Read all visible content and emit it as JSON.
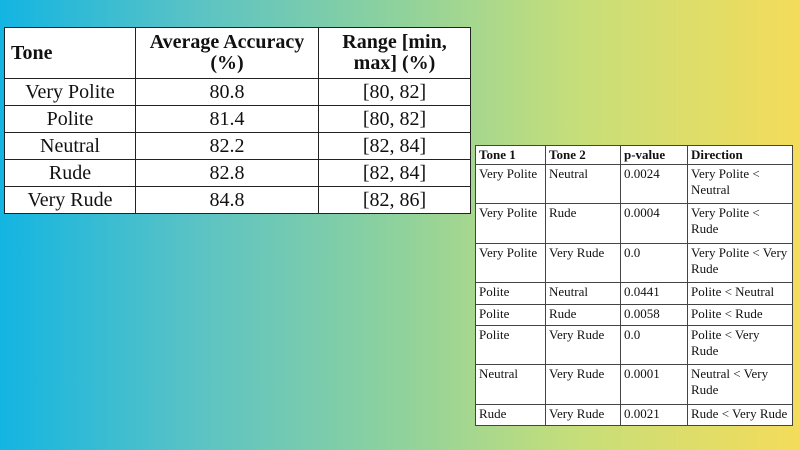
{
  "accuracy_table": {
    "headers": [
      "Tone",
      "Average Accuracy (%)",
      "Range [min, max] (%)"
    ],
    "rows": [
      [
        "Very Polite",
        "80.8",
        "[80, 82]"
      ],
      [
        "Polite",
        "81.4",
        "[80, 82]"
      ],
      [
        "Neutral",
        "82.2",
        "[82, 84]"
      ],
      [
        "Rude",
        "82.8",
        "[82, 84]"
      ],
      [
        "Very Rude",
        "84.8",
        "[82, 86]"
      ]
    ]
  },
  "pvalue_table": {
    "headers": [
      "Tone 1",
      "Tone 2",
      "p-value",
      "Direction"
    ],
    "rows": [
      [
        "Very Polite",
        "Neutral",
        "0.0024",
        "Very Polite < Neutral"
      ],
      [
        "Very Polite",
        "Rude",
        "0.0004",
        "Very Polite < Rude"
      ],
      [
        "Very Polite",
        "Very Rude",
        "0.0",
        "Very Polite < Very Rude"
      ],
      [
        "Polite",
        "Neutral",
        "0.0441",
        "Polite < Neutral"
      ],
      [
        "Polite",
        "Rude",
        "0.0058",
        "Polite < Rude"
      ],
      [
        "Polite",
        "Very Rude",
        "0.0",
        "Polite < Very Rude"
      ],
      [
        "Neutral",
        "Very Rude",
        "0.0001",
        "Neutral < Very Rude"
      ],
      [
        "Rude",
        "Very Rude",
        "0.0021",
        "Rude < Very Rude"
      ]
    ]
  }
}
